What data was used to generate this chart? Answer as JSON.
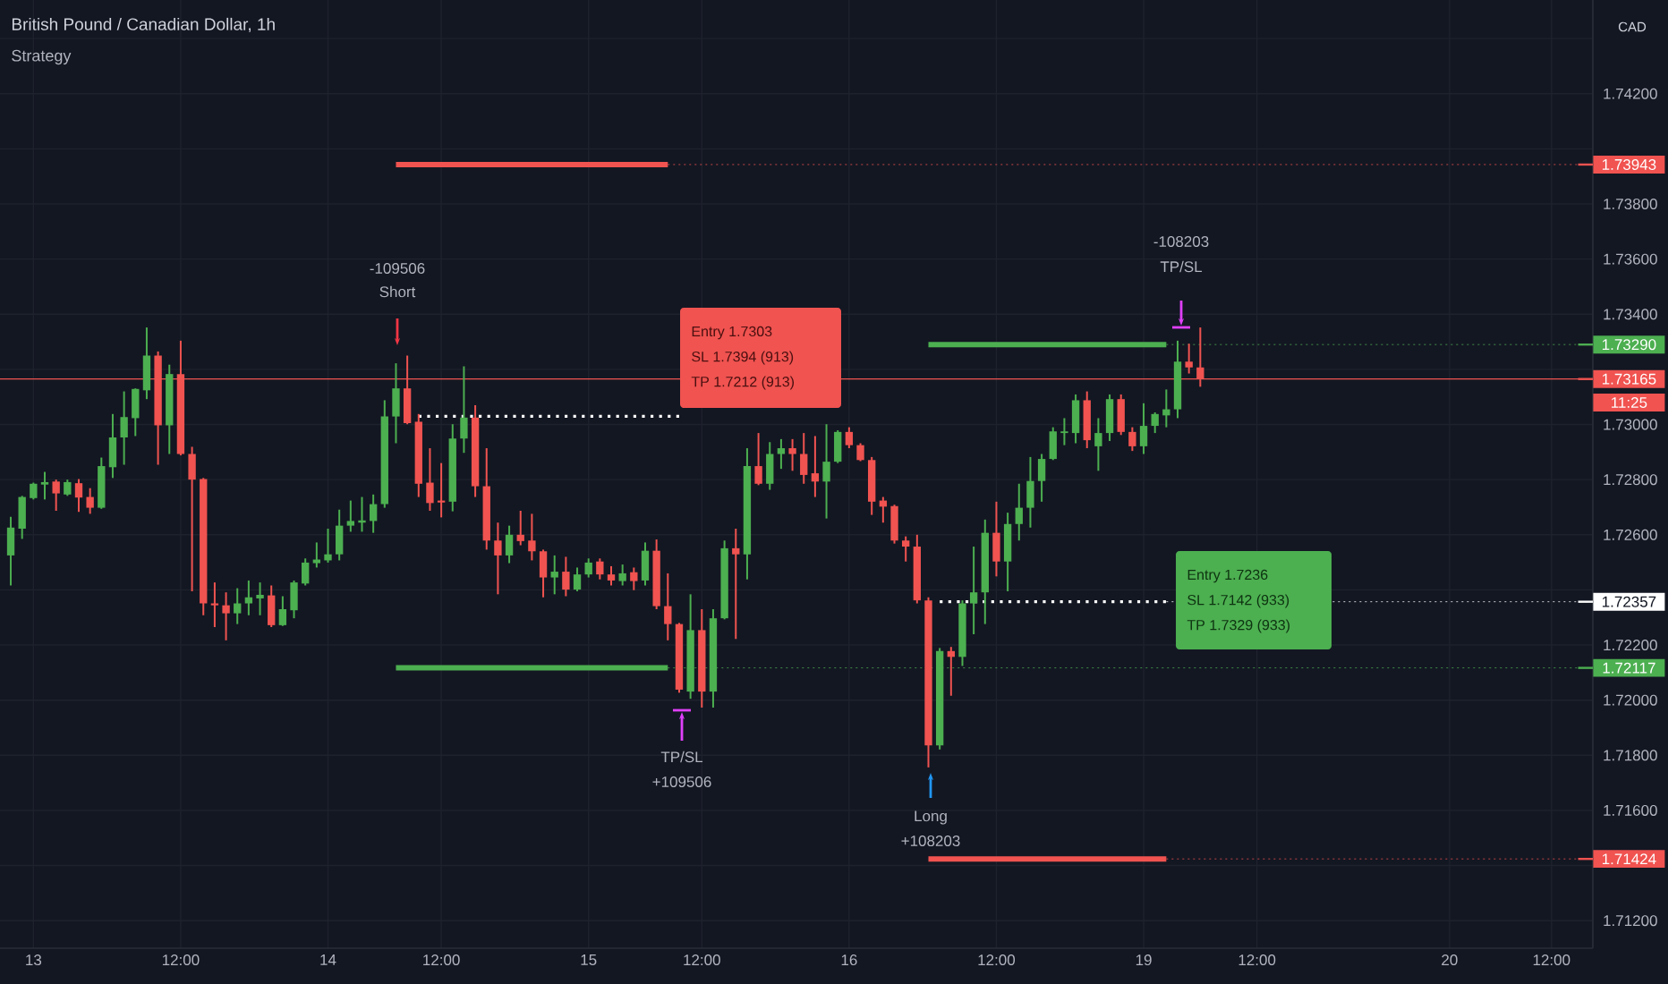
{
  "chart_data": {
    "type": "candlestick",
    "title": "British Pound / Canadian Dollar, 1h",
    "subtitle": "Strategy",
    "categories": [
      null,
      null,
      "13",
      null,
      null,
      null,
      null,
      null,
      null,
      null,
      null,
      null,
      null,
      null,
      null,
      "12:00",
      null,
      null,
      null,
      null,
      null,
      null,
      null,
      null,
      null,
      null,
      null,
      null,
      "14",
      null,
      null,
      null,
      null,
      null,
      null,
      null,
      null,
      null,
      "12:00",
      null,
      null,
      null,
      null,
      null,
      null,
      null,
      null,
      null,
      null,
      null,
      null,
      "15",
      null,
      null,
      null,
      null,
      null,
      null,
      null,
      null,
      null,
      "12:00",
      null,
      null,
      null,
      null,
      null,
      null,
      null,
      null,
      null,
      null,
      null,
      null,
      "16",
      null,
      null,
      null,
      null,
      null,
      null,
      null,
      null,
      null,
      null,
      null,
      null,
      "12:00",
      null,
      null,
      null,
      null,
      null,
      null,
      null,
      null,
      null,
      null,
      null,
      null,
      "19",
      null,
      null,
      null,
      null,
      null,
      null,
      null,
      null,
      null,
      "12:00",
      null,
      null,
      null,
      null,
      null,
      null,
      null,
      null,
      null,
      null,
      null,
      null,
      null,
      null,
      null,
      null,
      "20",
      null,
      null,
      null,
      null,
      null,
      null,
      null,
      null,
      "12:00",
      null,
      null,
      null
    ],
    "ohlc": [
      [
        1.72525,
        1.72665,
        1.72416,
        1.72626
      ],
      [
        1.72622,
        1.72741,
        1.72585,
        1.72737
      ],
      [
        1.72733,
        1.72789,
        1.72728,
        1.72785
      ],
      [
        1.72782,
        1.72828,
        1.72728,
        1.72791
      ],
      [
        1.72793,
        1.728,
        1.72687,
        1.7275
      ],
      [
        1.72746,
        1.728,
        1.72741,
        1.72791
      ],
      [
        1.72787,
        1.72802,
        1.72683,
        1.72735
      ],
      [
        1.72737,
        1.72769,
        1.72676,
        1.72698
      ],
      [
        1.72698,
        1.7288,
        1.72694,
        1.72849
      ],
      [
        1.72845,
        1.73038,
        1.72806,
        1.72953
      ],
      [
        1.72953,
        1.7312,
        1.72854,
        1.73027
      ],
      [
        1.73023,
        1.73131,
        1.72958,
        1.73129
      ],
      [
        1.73124,
        1.73352,
        1.73092,
        1.7325
      ],
      [
        1.7325,
        1.73265,
        1.72854,
        1.72997
      ],
      [
        1.72997,
        1.73217,
        1.72893,
        1.73183
      ],
      [
        1.73183,
        1.73304,
        1.72888,
        1.72893
      ],
      [
        1.72893,
        1.72919,
        1.72395,
        1.728
      ],
      [
        1.72802,
        1.72806,
        1.72308,
        1.72351
      ],
      [
        1.72351,
        1.72427,
        1.72265,
        1.72344
      ],
      [
        1.72344,
        1.72391,
        1.72217,
        1.72315
      ],
      [
        1.72315,
        1.72406,
        1.72276,
        1.72351
      ],
      [
        1.72351,
        1.72434,
        1.72308,
        1.72373
      ],
      [
        1.72369,
        1.72427,
        1.72308,
        1.72382
      ],
      [
        1.7238,
        1.72416,
        1.72265,
        1.72272
      ],
      [
        1.72272,
        1.72377,
        1.72269,
        1.7233
      ],
      [
        1.72326,
        1.72434,
        1.72297,
        1.72427
      ],
      [
        1.72423,
        1.72514,
        1.72416,
        1.72499
      ],
      [
        1.72497,
        1.72572,
        1.72481,
        1.7251
      ],
      [
        1.72507,
        1.72622,
        1.72499,
        1.72529
      ],
      [
        1.72529,
        1.72691,
        1.72507,
        1.72633
      ],
      [
        1.72633,
        1.72724,
        1.72611,
        1.7265
      ],
      [
        1.72644,
        1.72737,
        1.72611,
        1.72652
      ],
      [
        1.7265,
        1.72746,
        1.72607,
        1.72711
      ],
      [
        1.72711,
        1.73088,
        1.72698,
        1.73029
      ],
      [
        1.73029,
        1.73222,
        1.72932,
        1.73131
      ],
      [
        1.73131,
        1.7325,
        1.73001,
        1.73005
      ],
      [
        1.7301,
        1.73038,
        1.72737,
        1.72785
      ],
      [
        1.72789,
        1.72914,
        1.72687,
        1.72715
      ],
      [
        1.72724,
        1.7286,
        1.72663,
        1.72717
      ],
      [
        1.7272,
        1.73001,
        1.72685,
        1.72949
      ],
      [
        1.72949,
        1.73211,
        1.72897,
        1.73025
      ],
      [
        1.73025,
        1.7307,
        1.72737,
        1.72776
      ],
      [
        1.72776,
        1.72914,
        1.72546,
        1.72579
      ],
      [
        1.72579,
        1.72644,
        1.72384,
        1.72525
      ],
      [
        1.72525,
        1.72633,
        1.72497,
        1.726
      ],
      [
        1.726,
        1.72687,
        1.72562,
        1.72577
      ],
      [
        1.72579,
        1.72676,
        1.72507,
        1.7254
      ],
      [
        1.7254,
        1.72546,
        1.72373,
        1.72445
      ],
      [
        1.72445,
        1.72525,
        1.72384,
        1.72466
      ],
      [
        1.72466,
        1.7252,
        1.72377,
        1.72401
      ],
      [
        1.72401,
        1.72481,
        1.72395,
        1.72456
      ],
      [
        1.72456,
        1.72514,
        1.72445,
        1.72499
      ],
      [
        1.72503,
        1.72514,
        1.72438,
        1.72456
      ],
      [
        1.72456,
        1.72486,
        1.72416,
        1.72434
      ],
      [
        1.72432,
        1.72492,
        1.72416,
        1.7246
      ],
      [
        1.72464,
        1.72481,
        1.72399,
        1.72432
      ],
      [
        1.72434,
        1.72572,
        1.72416,
        1.72542
      ],
      [
        1.72542,
        1.72583,
        1.7233,
        1.72341
      ],
      [
        1.72341,
        1.7246,
        1.72217,
        1.72276
      ],
      [
        1.72276,
        1.7228,
        1.72027,
        1.72038
      ],
      [
        1.72031,
        1.72384,
        1.72005,
        1.72254
      ],
      [
        1.72254,
        1.7233,
        1.71973,
        1.72031
      ],
      [
        1.72031,
        1.7233,
        1.71973,
        1.72297
      ],
      [
        1.72297,
        1.72579,
        1.72293,
        1.72551
      ],
      [
        1.72551,
        1.72622,
        1.72222,
        1.72529
      ],
      [
        1.72529,
        1.72914,
        1.72438,
        1.72849
      ],
      [
        1.72849,
        1.72969,
        1.7278,
        1.72785
      ],
      [
        1.72785,
        1.72936,
        1.72763,
        1.72893
      ],
      [
        1.72893,
        1.72947,
        1.72839,
        1.72914
      ],
      [
        1.72914,
        1.72947,
        1.72832,
        1.72893
      ],
      [
        1.72893,
        1.72969,
        1.72785,
        1.72817
      ],
      [
        1.72823,
        1.72958,
        1.72737,
        1.72793
      ],
      [
        1.72793,
        1.73001,
        1.72659,
        1.72865
      ],
      [
        1.72865,
        1.72979,
        1.7286,
        1.72973
      ],
      [
        1.72973,
        1.7299,
        1.72914,
        1.72925
      ],
      [
        1.72925,
        1.72932,
        1.72867,
        1.72871
      ],
      [
        1.72871,
        1.72882,
        1.72672,
        1.7272
      ],
      [
        1.72724,
        1.72737,
        1.72644,
        1.72702
      ],
      [
        1.72704,
        1.72709,
        1.72568,
        1.72579
      ],
      [
        1.72579,
        1.72594,
        1.72503,
        1.72557
      ],
      [
        1.72557,
        1.726,
        1.72351,
        1.72362
      ],
      [
        1.72362,
        1.72373,
        1.71756,
        1.71836
      ],
      [
        1.71836,
        1.72189,
        1.71821,
        1.72178
      ],
      [
        1.72178,
        1.72193,
        1.72016,
        1.72157
      ],
      [
        1.72157,
        1.72362,
        1.72124,
        1.72351
      ],
      [
        1.72351,
        1.72557,
        1.72239,
        1.72391
      ],
      [
        1.72391,
        1.72655,
        1.72276,
        1.72607
      ],
      [
        1.72607,
        1.7272,
        1.72449,
        1.72503
      ],
      [
        1.72503,
        1.7268,
        1.72395,
        1.72639
      ],
      [
        1.72639,
        1.72785,
        1.72579,
        1.72698
      ],
      [
        1.72698,
        1.72882,
        1.72626,
        1.72795
      ],
      [
        1.72795,
        1.72893,
        1.7272,
        1.72875
      ],
      [
        1.72875,
        1.7299,
        1.72871,
        1.72975
      ],
      [
        1.72969,
        1.73023,
        1.72925,
        1.72975
      ],
      [
        1.72969,
        1.73109,
        1.72932,
        1.73088
      ],
      [
        1.73088,
        1.7312,
        1.72914,
        1.72943
      ],
      [
        1.72921,
        1.73023,
        1.72832,
        1.72969
      ],
      [
        1.72969,
        1.73109,
        1.7294,
        1.73092
      ],
      [
        1.73092,
        1.73109,
        1.72962,
        1.72973
      ],
      [
        1.72973,
        1.7299,
        1.72904,
        1.72921
      ],
      [
        1.72921,
        1.73077,
        1.72893,
        1.72995
      ],
      [
        1.72995,
        1.73044,
        1.72969,
        1.73038
      ],
      [
        1.73033,
        1.73127,
        1.7299,
        1.73055
      ],
      [
        1.73055,
        1.73304,
        1.73023,
        1.73228
      ],
      [
        1.73228,
        1.73293,
        1.73185,
        1.73207
      ],
      [
        1.73207,
        1.73352,
        1.73137,
        1.73165
      ],
      null,
      null,
      null,
      null,
      null,
      null,
      null,
      null,
      null,
      null,
      null,
      null,
      null,
      null,
      null,
      null,
      null,
      null,
      null,
      null,
      null,
      null,
      null,
      null,
      null,
      null,
      null,
      null,
      null,
      null,
      null,
      null,
      null,
      null
    ],
    "series": [
      {
        "type": "line",
        "color": "#ffffff",
        "line_style": "dotted",
        "values": [
          null,
          null,
          null,
          null,
          null,
          null,
          null,
          null,
          null,
          null,
          null,
          null,
          null,
          null,
          null,
          null,
          null,
          null,
          null,
          null,
          null,
          null,
          null,
          null,
          null,
          null,
          null,
          null,
          null,
          null,
          null,
          null,
          null,
          null,
          null,
          null,
          1.7303,
          1.7303,
          1.7303,
          1.7303,
          1.7303,
          1.7303,
          1.7303,
          1.7303,
          1.7303,
          1.7303,
          1.7303,
          1.7303,
          1.7303,
          1.7303,
          1.7303,
          1.7303,
          1.7303,
          1.7303,
          1.7303,
          1.7303,
          1.7303,
          1.7303,
          1.7303,
          1.7303,
          null,
          null,
          null,
          null,
          null,
          null,
          null,
          null,
          null,
          null,
          null,
          null,
          null,
          null,
          null,
          null,
          null,
          null,
          null,
          null,
          null,
          null,
          null,
          null,
          null,
          null,
          null,
          null,
          null,
          null,
          null,
          null,
          null,
          null,
          null,
          null,
          null,
          null,
          null,
          null,
          null,
          null,
          null,
          null,
          null,
          null,
          null,
          null,
          null,
          null,
          null,
          null,
          null,
          null,
          null,
          null,
          null,
          null,
          null,
          null,
          null,
          null,
          null,
          null,
          null,
          null,
          null,
          null,
          null,
          null,
          null,
          null,
          null,
          null,
          null,
          null,
          null,
          null,
          null,
          null
        ]
      }
    ],
    "ref_lines": [
      {
        "axis": "y",
        "value": 1.73943,
        "label": "1.73943",
        "color": "#f05350",
        "line_style": "solid"
      },
      {
        "axis": "y",
        "value": 1.7329,
        "label": "1.73290",
        "color": "#4caf50",
        "line_style": "solid"
      },
      {
        "axis": "y",
        "value": 1.73165,
        "label": "1.73165",
        "color": "#f05350",
        "line_style": "solid"
      },
      {
        "axis": "y",
        "value": 1.72357,
        "label": "1.72357",
        "color": "#ffffff",
        "line_style": "dotted"
      },
      {
        "axis": "y",
        "value": 1.72117,
        "label": "1.72117",
        "color": "#4caf50",
        "line_style": "solid"
      },
      {
        "axis": "y",
        "value": 1.71424,
        "label": "1.71424",
        "color": "#f05350",
        "line_style": "solid"
      }
    ],
    "annotations": [
      "-109506",
      "Short",
      "TP/SL",
      "+109506",
      "Long",
      "+108203",
      "-108203",
      "TP/SL",
      "Entry    1.7303",
      "SL    1.7394    (913)",
      "TP    1.7212    (913)",
      "Entry    1.7236",
      "SL    1.7142    (933)",
      "TP    1.7329    (933)",
      "11:25",
      "CAD"
    ],
    "ylim": [
      1.711,
      1.7454
    ],
    "yticks": [
      {
        "value": 1.712,
        "label": "1.71200"
      },
      {
        "value": 1.714,
        "label": null
      },
      {
        "value": 1.716,
        "label": "1.71600"
      },
      {
        "value": 1.718,
        "label": "1.71800"
      },
      {
        "value": 1.72,
        "label": "1.72000"
      },
      {
        "value": 1.722,
        "label": "1.72200"
      },
      {
        "value": 1.724,
        "label": null
      },
      {
        "value": 1.726,
        "label": "1.72600"
      },
      {
        "value": 1.728,
        "label": "1.72800"
      },
      {
        "value": 1.73,
        "label": "1.73000"
      },
      {
        "value": 1.732,
        "label": null
      },
      {
        "value": 1.734,
        "label": "1.73400"
      },
      {
        "value": 1.736,
        "label": "1.73600"
      },
      {
        "value": 1.738,
        "label": "1.73800"
      },
      {
        "value": 1.74,
        "label": null
      },
      {
        "value": 1.742,
        "label": "1.74200"
      },
      {
        "value": 1.744,
        "label": null
      }
    ],
    "grid": true
  }
}
